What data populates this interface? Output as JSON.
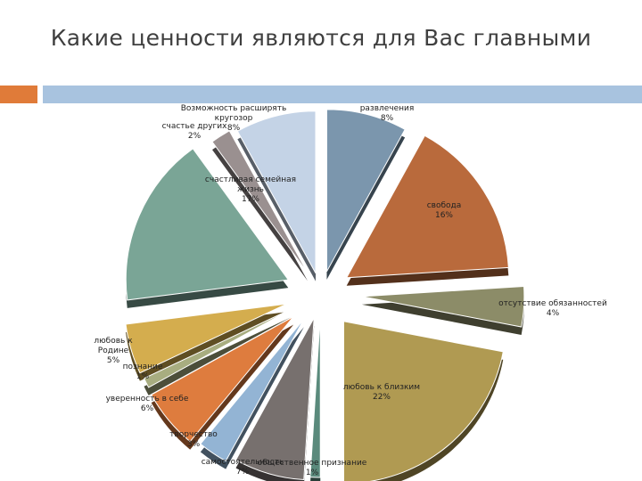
{
  "colors": {
    "accent_bar": "#e07b39",
    "header_bar": "#a8c3df",
    "title_text": "#3f3f3f"
  },
  "chart_data": {
    "type": "pie",
    "title": "Какие ценности являются для Вас главными",
    "style": "exploded 3d pie",
    "slices": [
      {
        "label": "развлечения",
        "percent_label": "8%",
        "value": 8,
        "color": "#7b96ad"
      },
      {
        "label": "свобода",
        "percent_label": "16%",
        "value": 16,
        "color": "#b96a3c"
      },
      {
        "label": "отсутствие обязанностей",
        "percent_label": "4%",
        "value": 4,
        "color": "#8c8c68"
      },
      {
        "label": "любовь к близким",
        "percent_label": "22%",
        "value": 22,
        "color": "#b09a52"
      },
      {
        "label": "общественное признание",
        "percent_label": "1%",
        "value": 1,
        "color": "#5a8a7c"
      },
      {
        "label": "самостоятельность",
        "percent_label": "7%",
        "value": 7,
        "color": "#77706e"
      },
      {
        "label": "творчество",
        "percent_label": "3%",
        "value": 3,
        "color": "#93b4d4"
      },
      {
        "label": "уверенность в себе",
        "percent_label": "6%",
        "value": 6,
        "color": "#de7c3e"
      },
      {
        "label": "познание",
        "percent_label": "1%",
        "value": 1,
        "color": "#a8ad80"
      },
      {
        "label": "любовь к Родине",
        "percent_label": "5%",
        "value": 5,
        "color": "#d4ad4e"
      },
      {
        "label": "счастливая семейная жизнь",
        "percent_label": "17%",
        "value": 17,
        "color": "#7aa596"
      },
      {
        "label": "счастье других",
        "percent_label": "2%",
        "value": 2,
        "color": "#9a9090"
      },
      {
        "label": "Возможность расширять кругозор",
        "percent_label": "8%",
        "value": 8,
        "color": "#c4d3e6"
      }
    ]
  }
}
